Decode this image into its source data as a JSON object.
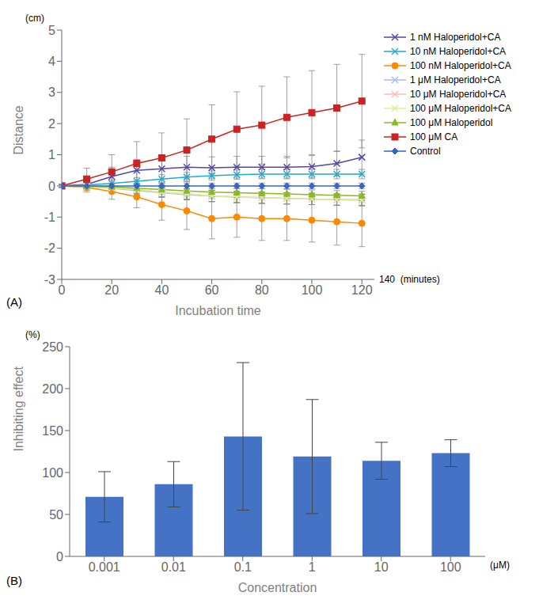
{
  "chart_data": [
    {
      "type": "line",
      "x": [
        0,
        10,
        20,
        30,
        40,
        50,
        60,
        70,
        80,
        90,
        100,
        110,
        120
      ],
      "series": [
        {
          "name": "1 nM Haloperidol+CA",
          "color": "#5544aa",
          "marker": "x",
          "values": [
            0,
            0.05,
            0.3,
            0.5,
            0.55,
            0.6,
            0.58,
            0.6,
            0.6,
            0.6,
            0.62,
            0.72,
            0.92
          ],
          "errors": [
            0.05,
            0.2,
            0.3,
            0.35,
            0.35,
            0.35,
            0.35,
            0.35,
            0.35,
            0.35,
            0.35,
            0.4,
            0.55
          ]
        },
        {
          "name": "10 nM Haloperidol+CA",
          "color": "#22aacc",
          "marker": "x",
          "values": [
            0,
            0.03,
            0.08,
            0.15,
            0.22,
            0.28,
            0.33,
            0.36,
            0.38,
            0.38,
            0.38,
            0.38,
            0.38
          ],
          "errors": [
            0.04,
            0.08,
            0.1,
            0.12,
            0.14,
            0.15,
            0.15,
            0.15,
            0.15,
            0.15,
            0.15,
            0.15,
            0.15
          ]
        },
        {
          "name": "100 nM Haloperidol+CA",
          "color": "#ff8800",
          "marker": "circle",
          "values": [
            0,
            -0.05,
            -0.18,
            -0.35,
            -0.6,
            -0.8,
            -1.05,
            -1.0,
            -1.05,
            -1.05,
            -1.1,
            -1.15,
            -1.2
          ],
          "errors": [
            0.05,
            0.15,
            0.25,
            0.35,
            0.5,
            0.6,
            0.65,
            0.65,
            0.7,
            0.7,
            0.7,
            0.75,
            0.75
          ]
        },
        {
          "name": "1 μM Haloperidol+CA",
          "color": "#aabbee",
          "marker": "x",
          "values": [
            0,
            -0.02,
            -0.08,
            -0.15,
            -0.22,
            -0.28,
            -0.33,
            -0.36,
            -0.38,
            -0.4,
            -0.42,
            -0.44,
            -0.44
          ],
          "errors": [
            0.04,
            0.08,
            0.1,
            0.13,
            0.15,
            0.17,
            0.18,
            0.18,
            0.18,
            0.18,
            0.18,
            0.18,
            0.18
          ]
        },
        {
          "name": "10 μM Haloperidol+CA",
          "color": "#ffbbbb",
          "marker": "x",
          "values": [
            0,
            -0.02,
            -0.06,
            -0.12,
            -0.2,
            -0.26,
            -0.32,
            -0.35,
            -0.38,
            -0.4,
            -0.42,
            -0.44,
            -0.46
          ],
          "errors": [
            0.04,
            0.08,
            0.1,
            0.13,
            0.15,
            0.17,
            0.18,
            0.18,
            0.18,
            0.18,
            0.18,
            0.18,
            0.18
          ]
        },
        {
          "name": "100 μM Haloperidol+CA",
          "color": "#ddee99",
          "marker": "x",
          "values": [
            0,
            -0.02,
            -0.06,
            -0.12,
            -0.2,
            -0.26,
            -0.32,
            -0.36,
            -0.38,
            -0.4,
            -0.42,
            -0.44,
            -0.46
          ],
          "errors": [
            0.04,
            0.08,
            0.1,
            0.13,
            0.15,
            0.17,
            0.18,
            0.18,
            0.18,
            0.18,
            0.18,
            0.18,
            0.18
          ]
        },
        {
          "name": "100 μM Haloperidol",
          "color": "#88bb22",
          "marker": "triangle",
          "values": [
            0,
            -0.01,
            -0.03,
            -0.07,
            -0.12,
            -0.16,
            -0.2,
            -0.22,
            -0.24,
            -0.26,
            -0.28,
            -0.3,
            -0.32
          ],
          "errors": [
            0.04,
            0.08,
            0.1,
            0.12,
            0.14,
            0.15,
            0.15,
            0.15,
            0.15,
            0.15,
            0.15,
            0.15,
            0.15
          ]
        },
        {
          "name": "100 μM CA",
          "color": "#cc2222",
          "marker": "square",
          "values": [
            0,
            0.22,
            0.45,
            0.72,
            0.9,
            1.15,
            1.5,
            1.82,
            1.95,
            2.2,
            2.35,
            2.5,
            2.72
          ],
          "errors": [
            0.05,
            0.35,
            0.55,
            0.7,
            0.8,
            1.0,
            1.1,
            1.2,
            1.25,
            1.3,
            1.35,
            1.4,
            1.5
          ]
        },
        {
          "name": "Control",
          "color": "#3366cc",
          "marker": "diamond",
          "values": [
            0,
            0.0,
            0.0,
            0.0,
            0.0,
            0.0,
            0.0,
            0.0,
            0.0,
            0.0,
            0.0,
            0.0,
            0.0
          ],
          "errors": [
            0.04,
            0.08,
            0.08,
            0.09,
            0.09,
            0.09,
            0.09,
            0.09,
            0.09,
            0.09,
            0.09,
            0.09,
            0.09
          ]
        }
      ],
      "xlabel": "Incubation time",
      "ylabel": "Distance",
      "annotations": [
        "(cm)",
        "140  (minutes)",
        "(A)"
      ],
      "xlim": [
        0,
        125
      ],
      "xticks": [
        0,
        20,
        40,
        60,
        80,
        100,
        120
      ],
      "ylim": [
        -3,
        5
      ],
      "yticks": [
        -3,
        -2,
        -1,
        0,
        1,
        2,
        3,
        4,
        5
      ],
      "legend": "right"
    },
    {
      "type": "bar",
      "categories": [
        "0.001",
        "0.01",
        "0.1",
        "1",
        "10",
        "100"
      ],
      "values": [
        71,
        86,
        143,
        119,
        114,
        123
      ],
      "errors": [
        30,
        27,
        88,
        68,
        22,
        16
      ],
      "color": "#4472c4",
      "xlabel": "Concentration",
      "ylabel": "Inhibiting effect",
      "annotations": [
        "(%)",
        "(μM)",
        "(B)"
      ],
      "ylim": [
        0,
        250
      ],
      "yticks": [
        0,
        50,
        100,
        150,
        200,
        250
      ]
    }
  ]
}
